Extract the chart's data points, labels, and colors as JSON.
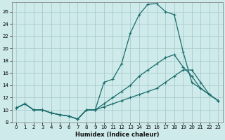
{
  "xlabel": "Humidex (Indice chaleur)",
  "bg_color": "#ceeaea",
  "grid_color": "#aacccc",
  "line_color": "#1a6b6b",
  "xlim": [
    -0.5,
    23.5
  ],
  "ylim": [
    8,
    27.5
  ],
  "xticks": [
    0,
    1,
    2,
    3,
    4,
    5,
    6,
    7,
    8,
    9,
    10,
    11,
    12,
    13,
    14,
    15,
    16,
    17,
    18,
    19,
    20,
    21,
    22,
    23
  ],
  "yticks": [
    8,
    10,
    12,
    14,
    16,
    18,
    20,
    22,
    24,
    26
  ],
  "curve1_x": [
    0,
    1,
    2,
    3,
    4,
    5,
    6,
    7,
    8,
    9,
    10,
    11,
    12,
    13,
    14,
    15,
    16,
    17,
    18,
    19,
    20,
    21,
    22,
    23
  ],
  "curve1_y": [
    10.3,
    11.0,
    10.0,
    10.0,
    9.5,
    9.2,
    9.0,
    8.5,
    10.0,
    10.0,
    14.5,
    15.0,
    17.5,
    22.5,
    25.5,
    27.2,
    27.3,
    26.0,
    25.5,
    19.5,
    14.5,
    13.5,
    12.5,
    11.5
  ],
  "curve2_x": [
    0,
    1,
    2,
    3,
    4,
    5,
    6,
    7,
    8,
    9,
    10,
    11,
    12,
    13,
    14,
    15,
    16,
    17,
    18,
    19,
    20,
    21,
    22,
    23
  ],
  "curve2_y": [
    10.3,
    11.0,
    10.0,
    10.0,
    9.5,
    9.2,
    9.0,
    8.5,
    10.0,
    10.0,
    11.0,
    12.0,
    13.0,
    14.0,
    15.5,
    16.5,
    17.5,
    18.5,
    19.0,
    17.0,
    15.5,
    13.5,
    12.5,
    11.5
  ],
  "curve3_x": [
    0,
    1,
    2,
    3,
    4,
    5,
    6,
    7,
    8,
    9,
    10,
    11,
    12,
    13,
    14,
    15,
    16,
    17,
    18,
    19,
    20,
    21,
    22,
    23
  ],
  "curve3_y": [
    10.3,
    11.0,
    10.0,
    10.0,
    9.5,
    9.2,
    9.0,
    8.5,
    10.0,
    10.0,
    10.5,
    11.0,
    11.5,
    12.0,
    12.5,
    13.0,
    13.5,
    14.5,
    15.5,
    16.5,
    16.5,
    14.5,
    12.5,
    11.5
  ]
}
